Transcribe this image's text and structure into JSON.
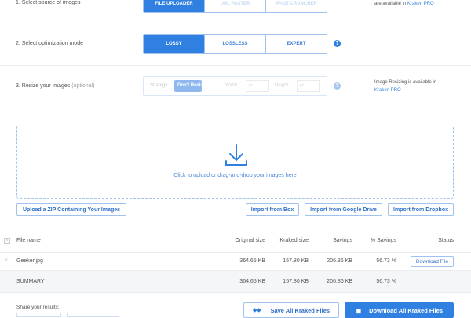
{
  "step1": {
    "label": "1. Select source of images",
    "options": [
      "FILE UPLOADER",
      "URL PASTER",
      "PAGE CRUNCHER"
    ],
    "selected": "FILE UPLOADER",
    "note_text": "are available in ",
    "note_link": "Kraken PRO"
  },
  "step2": {
    "label": "2. Select optimization mode",
    "options": [
      "LOSSY",
      "LOSSLESS",
      "EXPERT"
    ],
    "selected": "LOSSY",
    "help": "?"
  },
  "step3": {
    "label": "3. Resize your images",
    "label_suffix": "(optional)",
    "strategy_label": "Strategy:",
    "strategy_value": "Don't Resize",
    "width_label": "Width:",
    "width_placeholder": "px",
    "height_label": "Height:",
    "height_placeholder": "px",
    "help": "?",
    "note_text": "Image Resizing is available in",
    "note_link": "Kraken PRO"
  },
  "dropzone": {
    "text": "Click to upload or drag-and-drop your images here"
  },
  "import": {
    "zip": "Upload a ZIP Containing Your Images",
    "box": "Import from Box",
    "gdrive": "Import from Google Drive",
    "dropbox": "Import from Dropbox"
  },
  "table": {
    "headers": [
      "File name",
      "Original size",
      "Kraked size",
      "Savings",
      "% Savings",
      "Status"
    ],
    "rows": [
      {
        "name": "Geeker.jpg",
        "original": "364.65 KB",
        "kraked": "157.80 KB",
        "savings": "206.86 KB",
        "pct": "56.73 %",
        "status": "Download File"
      }
    ],
    "summary": {
      "name": "SUMMARY",
      "original": "364.65 KB",
      "kraked": "157.80 KB",
      "savings": "206.86 KB",
      "pct": "56.73 %"
    }
  },
  "share": {
    "label": "Share your results:"
  },
  "actions": {
    "save_all": "Save All Kraked Files",
    "download_all": "Download All Kraked Files"
  },
  "colors": {
    "accent": "#2f80e0"
  }
}
